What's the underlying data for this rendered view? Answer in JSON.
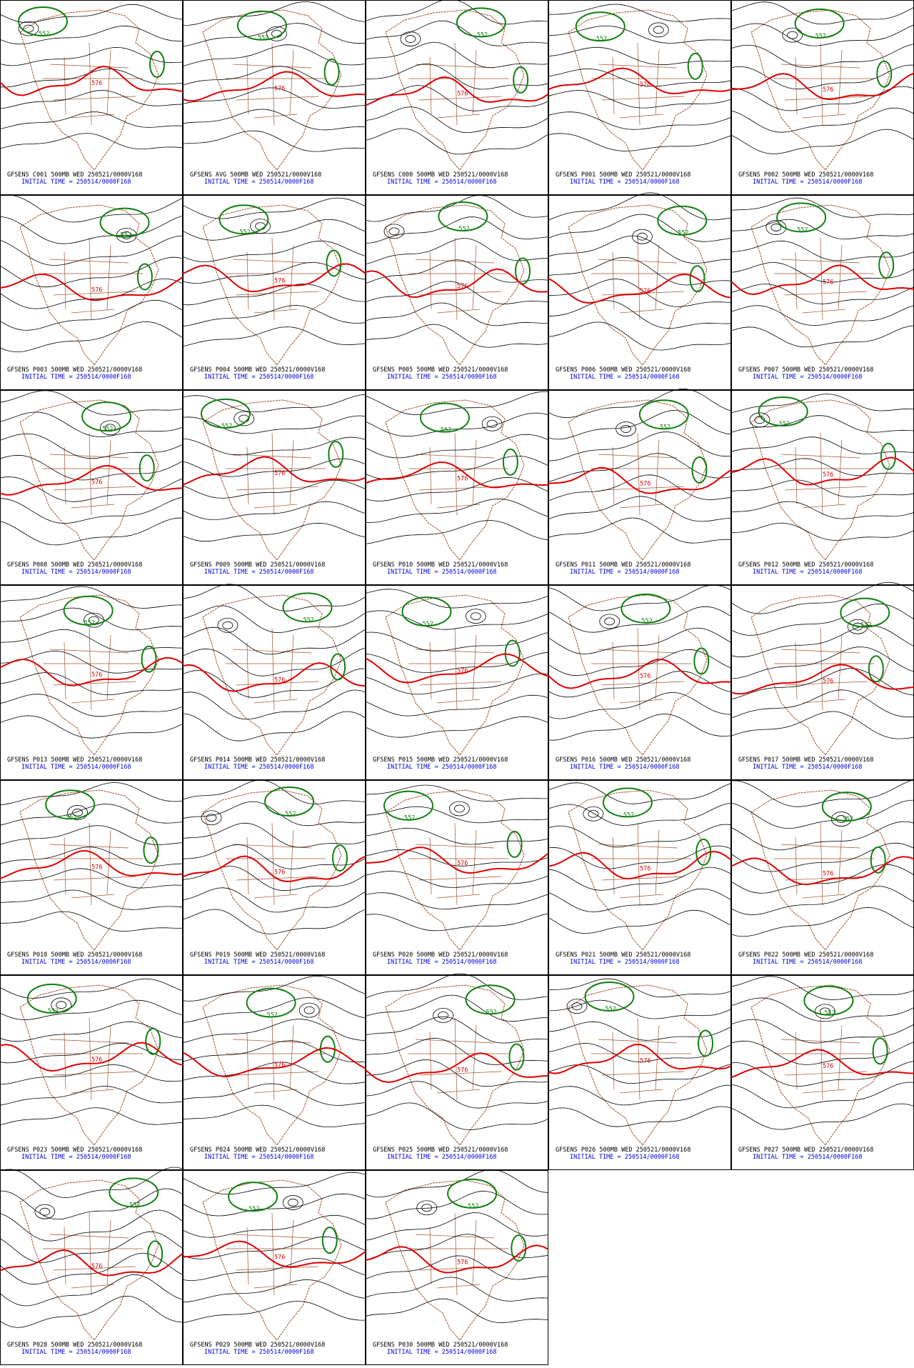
{
  "panels": [
    {
      "title": "GFSENS C001 500MB WED 250521/0000V168",
      "subtitle": "INITIAL TIME = 250514/0000F168"
    },
    {
      "title": "GFSENS AVG 500MB WED 250521/0000V168",
      "subtitle": "INITIAL TIME = 250514/0000F168"
    },
    {
      "title": "GFSENS C000 500MB WED 250521/0000V168",
      "subtitle": "INITIAL TIME = 250514/0000F168"
    },
    {
      "title": "GFSENS P001 500MB WED 250521/0000V168",
      "subtitle": "INITIAL TIME = 250514/0000F168"
    },
    {
      "title": "GFSENS P002 500MB WED 250521/0000V168",
      "subtitle": "INITIAL TIME = 250514/0000F168"
    },
    {
      "title": "GFSENS P003 500MB WED 250521/0000V168",
      "subtitle": "INITIAL TIME = 250514/0000F168"
    },
    {
      "title": "GFSENS P004 500MB WED 250521/0000V168",
      "subtitle": "INITIAL TIME = 250514/0000F168"
    },
    {
      "title": "GFSENS P005 500MB WED 250521/0000V168",
      "subtitle": "INITIAL TIME = 250514/0000F168"
    },
    {
      "title": "GFSENS P006 500MB WED 250521/0000V168",
      "subtitle": "INITIAL TIME = 250514/0000F168"
    },
    {
      "title": "GFSENS P007 500MB WED 250521/0000V168",
      "subtitle": "INITIAL TIME = 250514/0000F168"
    },
    {
      "title": "GFSENS P008 500MB WED 250521/0000V168",
      "subtitle": "INITIAL TIME = 250514/0000F168"
    },
    {
      "title": "GFSENS P009 500MB WED 250521/0000V168",
      "subtitle": "INITIAL TIME = 250514/0000F168"
    },
    {
      "title": "GFSENS P010 500MB WED 250521/0000V168",
      "subtitle": "INITIAL TIME = 250514/0000F168"
    },
    {
      "title": "GFSENS P011 500MB WED 250521/0000V168",
      "subtitle": "INITIAL TIME = 250514/0000F168"
    },
    {
      "title": "GFSENS P012 500MB WED 250521/0000V168",
      "subtitle": "INITIAL TIME = 250514/0000F168"
    },
    {
      "title": "GFSENS P013 500MB WED 250521/0000V168",
      "subtitle": "INITIAL TIME = 250514/0000F168"
    },
    {
      "title": "GFSENS P014 500MB WED 250521/0000V168",
      "subtitle": "INITIAL TIME = 250514/0000F168"
    },
    {
      "title": "GFSENS P015 500MB WED 250521/0000V168",
      "subtitle": "INITIAL TIME = 250514/0000F168"
    },
    {
      "title": "GFSENS P016 500MB WED 250521/0000V168",
      "subtitle": "INITIAL TIME = 250514/0000F168"
    },
    {
      "title": "GFSENS P017 500MB WED 250521/0000V168",
      "subtitle": "INITIAL TIME = 250514/0000F168"
    },
    {
      "title": "GFSENS P018 500MB WED 250521/0000V168",
      "subtitle": "INITIAL TIME = 250514/0000F168"
    },
    {
      "title": "GFSENS P019 500MB WED 250521/0000V168",
      "subtitle": "INITIAL TIME = 250514/0000F168"
    },
    {
      "title": "GFSENS P020 500MB WED 250521/0000V168",
      "subtitle": "INITIAL TIME = 250514/0000F168"
    },
    {
      "title": "GFSENS P021 500MB WED 250521/0000V168",
      "subtitle": "INITIAL TIME = 250514/0000F168"
    },
    {
      "title": "GFSENS P022 500MB WED 250521/0000V168",
      "subtitle": "INITIAL TIME = 250514/0000F168"
    },
    {
      "title": "GFSENS P023 500MB WED 250521/0000V168",
      "subtitle": "INITIAL TIME = 250514/0000F168"
    },
    {
      "title": "GFSENS P024 500MB WED 250521/0000V168",
      "subtitle": "INITIAL TIME = 250514/0000F168"
    },
    {
      "title": "GFSENS P025 500MB WED 250521/0000V168",
      "subtitle": "INITIAL TIME = 250514/0000F168"
    },
    {
      "title": "GFSENS P026 500MB WED 250521/0000V168",
      "subtitle": "INITIAL TIME = 250514/0000F168"
    },
    {
      "title": "GFSENS P027 500MB WED 250521/0000V168",
      "subtitle": "INITIAL TIME = 250514/0000F168"
    },
    {
      "title": "GFSENS P028 500MB WED 250521/0000V168",
      "subtitle": "INITIAL TIME = 250514/0000F168"
    },
    {
      "title": "GFSENS P029 500MB WED 250521/0000V168",
      "subtitle": "INITIAL TIME = 250514/0000F168"
    },
    {
      "title": "GFSENS P030 500MB WED 250521/0000V168",
      "subtitle": "INITIAL TIME = 250514/0000F168"
    }
  ],
  "contour_labels": [
    "552",
    "576"
  ]
}
